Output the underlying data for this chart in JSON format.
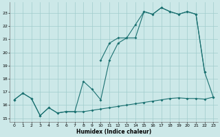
{
  "xlabel": "Humidex (Indice chaleur)",
  "bg_color": "#cce8e8",
  "line_color": "#1a7070",
  "grid_color": "#a0cccc",
  "ylim": [
    14.7,
    23.8
  ],
  "xlim": [
    -0.5,
    23.5
  ],
  "yticks": [
    15,
    16,
    17,
    18,
    19,
    20,
    21,
    22,
    23
  ],
  "xticks": [
    0,
    1,
    2,
    3,
    4,
    5,
    6,
    7,
    8,
    9,
    10,
    11,
    12,
    13,
    14,
    15,
    16,
    17,
    18,
    19,
    20,
    21,
    22,
    23
  ],
  "line1_x": [
    0,
    1,
    2,
    3,
    4,
    5,
    6,
    7,
    8,
    9,
    10,
    11,
    12,
    13,
    14,
    15,
    16,
    17,
    18,
    19,
    20,
    21,
    22,
    23
  ],
  "line1_y": [
    16.4,
    16.9,
    16.5,
    15.2,
    15.8,
    15.4,
    15.5,
    15.5,
    15.5,
    15.6,
    15.7,
    15.8,
    15.9,
    16.0,
    16.1,
    16.2,
    16.3,
    16.4,
    16.5,
    16.55,
    16.5,
    16.5,
    16.45,
    16.6
  ],
  "line2_x": [
    0,
    1,
    2,
    3,
    4,
    5,
    6,
    7,
    8,
    9,
    10,
    11,
    12,
    13,
    14,
    15,
    16,
    17,
    18,
    19,
    20,
    21,
    22
  ],
  "line2_y": [
    16.4,
    16.9,
    16.5,
    15.2,
    15.8,
    15.4,
    15.5,
    15.5,
    17.8,
    17.2,
    16.4,
    19.4,
    20.7,
    21.1,
    21.1,
    23.1,
    22.9,
    23.4,
    23.1,
    22.9,
    23.1,
    22.9,
    18.5
  ],
  "line3_x": [
    10,
    11,
    12,
    13,
    14,
    15,
    16,
    17,
    18,
    19,
    20,
    21,
    22,
    23
  ],
  "line3_y": [
    19.4,
    20.7,
    21.1,
    21.1,
    22.1,
    23.1,
    22.9,
    23.4,
    23.1,
    22.9,
    23.1,
    22.9,
    18.5,
    16.6
  ]
}
